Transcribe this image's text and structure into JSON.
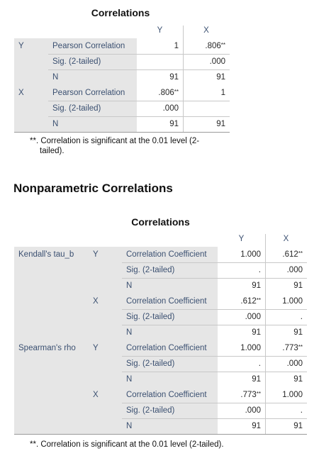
{
  "table1": {
    "title": "Correlations",
    "columns": [
      "Y",
      "X"
    ],
    "row_groups": [
      {
        "var": "Y",
        "rows": [
          {
            "stat": "Pearson Correlation",
            "cells": [
              {
                "v": "1",
                "s": ""
              },
              {
                "v": ".806",
                "s": "**"
              }
            ]
          },
          {
            "stat": "Sig. (2-tailed)",
            "cells": [
              {
                "v": "",
                "s": ""
              },
              {
                "v": ".000",
                "s": ""
              }
            ]
          },
          {
            "stat": "N",
            "cells": [
              {
                "v": "91",
                "s": ""
              },
              {
                "v": "91",
                "s": ""
              }
            ]
          }
        ]
      },
      {
        "var": "X",
        "rows": [
          {
            "stat": "Pearson Correlation",
            "cells": [
              {
                "v": ".806",
                "s": "**"
              },
              {
                "v": "1",
                "s": ""
              }
            ]
          },
          {
            "stat": "Sig. (2-tailed)",
            "cells": [
              {
                "v": ".000",
                "s": ""
              },
              {
                "v": "",
                "s": ""
              }
            ]
          },
          {
            "stat": "N",
            "cells": [
              {
                "v": "91",
                "s": ""
              },
              {
                "v": "91",
                "s": ""
              }
            ]
          }
        ]
      }
    ],
    "footnote_line1": "**. Correlation is significant at the 0.01 level (2-",
    "footnote_line2": "tailed)."
  },
  "section_title": "Nonparametric Correlations",
  "table2": {
    "title": "Correlations",
    "columns": [
      "Y",
      "X"
    ],
    "groups": [
      {
        "method": "Kendall's tau_b",
        "vars": [
          {
            "var": "Y",
            "rows": [
              {
                "stat": "Correlation Coefficient",
                "cells": [
                  {
                    "v": "1.000",
                    "s": ""
                  },
                  {
                    "v": ".612",
                    "s": "**"
                  }
                ]
              },
              {
                "stat": "Sig. (2-tailed)",
                "cells": [
                  {
                    "v": ".",
                    "s": ""
                  },
                  {
                    "v": ".000",
                    "s": ""
                  }
                ]
              },
              {
                "stat": "N",
                "cells": [
                  {
                    "v": "91",
                    "s": ""
                  },
                  {
                    "v": "91",
                    "s": ""
                  }
                ]
              }
            ]
          },
          {
            "var": "X",
            "rows": [
              {
                "stat": "Correlation Coefficient",
                "cells": [
                  {
                    "v": ".612",
                    "s": "**"
                  },
                  {
                    "v": "1.000",
                    "s": ""
                  }
                ]
              },
              {
                "stat": "Sig. (2-tailed)",
                "cells": [
                  {
                    "v": ".000",
                    "s": ""
                  },
                  {
                    "v": ".",
                    "s": ""
                  }
                ]
              },
              {
                "stat": "N",
                "cells": [
                  {
                    "v": "91",
                    "s": ""
                  },
                  {
                    "v": "91",
                    "s": ""
                  }
                ]
              }
            ]
          }
        ]
      },
      {
        "method": "Spearman's rho",
        "vars": [
          {
            "var": "Y",
            "rows": [
              {
                "stat": "Correlation Coefficient",
                "cells": [
                  {
                    "v": "1.000",
                    "s": ""
                  },
                  {
                    "v": ".773",
                    "s": "**"
                  }
                ]
              },
              {
                "stat": "Sig. (2-tailed)",
                "cells": [
                  {
                    "v": ".",
                    "s": ""
                  },
                  {
                    "v": ".000",
                    "s": ""
                  }
                ]
              },
              {
                "stat": "N",
                "cells": [
                  {
                    "v": "91",
                    "s": ""
                  },
                  {
                    "v": "91",
                    "s": ""
                  }
                ]
              }
            ]
          },
          {
            "var": "X",
            "rows": [
              {
                "stat": "Correlation Coefficient",
                "cells": [
                  {
                    "v": ".773",
                    "s": "**"
                  },
                  {
                    "v": "1.000",
                    "s": ""
                  }
                ]
              },
              {
                "stat": "Sig. (2-tailed)",
                "cells": [
                  {
                    "v": ".000",
                    "s": ""
                  },
                  {
                    "v": ".",
                    "s": ""
                  }
                ]
              },
              {
                "stat": "N",
                "cells": [
                  {
                    "v": "91",
                    "s": ""
                  },
                  {
                    "v": "91",
                    "s": ""
                  }
                ]
              }
            ]
          }
        ]
      }
    ],
    "footnote": "**. Correlation is significant at the 0.01 level (2-tailed)."
  }
}
